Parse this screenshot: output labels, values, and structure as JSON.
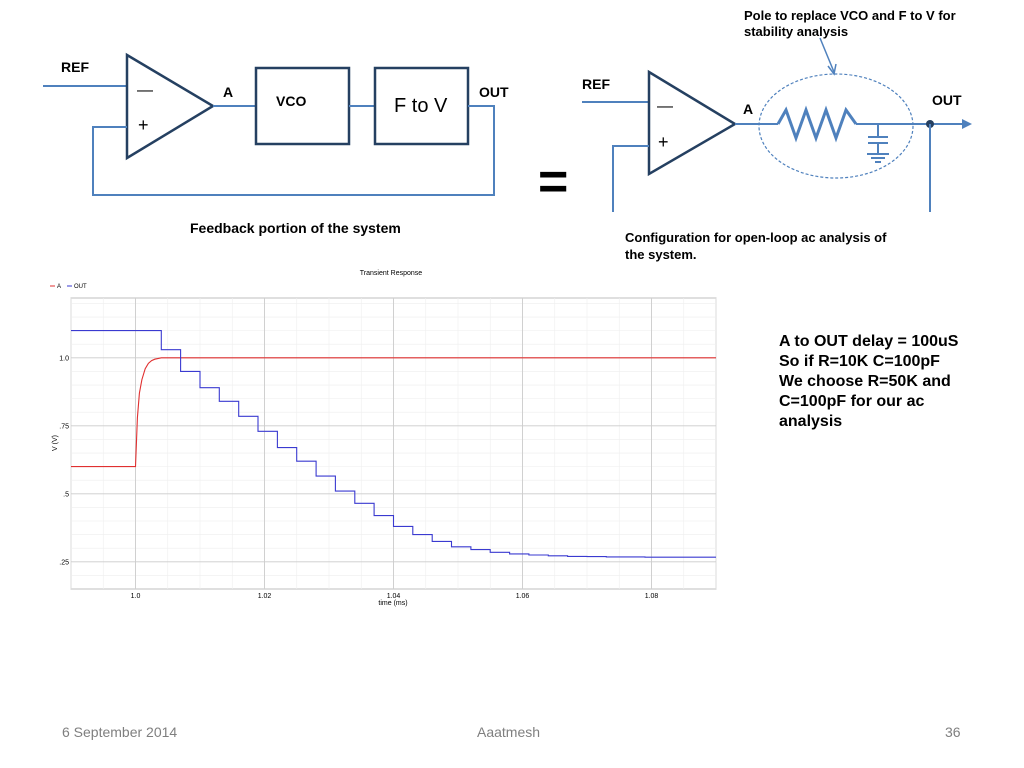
{
  "left_diagram": {
    "ref_label": "REF",
    "minus_label": "—",
    "plus_label": "+",
    "node_a_label": "A",
    "vco_label": "VCO",
    "f_to_v_label": "F to V",
    "out_label": "OUT",
    "caption": "Feedback portion of the system"
  },
  "equals_sign": "=",
  "right_diagram": {
    "ref_label": "REF",
    "minus_label": "—",
    "plus_label": "+",
    "node_a_label": "A",
    "out_label": "OUT",
    "annotation_line1": "Pole to replace VCO and F to V for",
    "annotation_line2": "stability analysis",
    "caption_line1": "Configuration for open-loop ac analysis of",
    "caption_line2": "the system."
  },
  "chart_data": {
    "type": "line",
    "title": "Transient Response",
    "xlabel": "time (ms)",
    "ylabel": "V (V)",
    "xlim": [
      0.99,
      1.09
    ],
    "ylim": [
      0.15,
      1.22
    ],
    "x_ticks": [
      "1.0",
      "1.02",
      "1.04",
      "1.06",
      "1.08"
    ],
    "x_tick_values": [
      1.0,
      1.02,
      1.04,
      1.06,
      1.08
    ],
    "y_ticks": [
      "1.0",
      ".75",
      ".5",
      ".25"
    ],
    "y_tick_values": [
      1.0,
      0.75,
      0.5,
      0.25
    ],
    "grid": true,
    "legend": [
      {
        "name": "A",
        "color": "#e03030"
      },
      {
        "name": "OUT",
        "color": "#3a3ad0"
      }
    ],
    "series": [
      {
        "name": "A",
        "color": "#e03030",
        "x": [
          0.99,
          1.0,
          1.0003,
          1.0006,
          1.001,
          1.0015,
          1.002,
          1.0025,
          1.003,
          1.004,
          1.09
        ],
        "y": [
          0.6,
          0.6,
          0.78,
          0.87,
          0.92,
          0.96,
          0.98,
          0.99,
          0.995,
          1.0,
          1.0
        ]
      },
      {
        "name": "OUT",
        "color": "#3a3ad0",
        "step_x": [
          0.99,
          1.004,
          1.007,
          1.01,
          1.013,
          1.016,
          1.019,
          1.022,
          1.025,
          1.028,
          1.031,
          1.034,
          1.037,
          1.04,
          1.043,
          1.046,
          1.049,
          1.052,
          1.055,
          1.058,
          1.061,
          1.064,
          1.067,
          1.07,
          1.073,
          1.076,
          1.079,
          1.082,
          1.09
        ],
        "step_y": [
          1.1,
          1.03,
          0.95,
          0.89,
          0.84,
          0.785,
          0.73,
          0.67,
          0.62,
          0.565,
          0.51,
          0.465,
          0.42,
          0.38,
          0.35,
          0.325,
          0.305,
          0.295,
          0.285,
          0.279,
          0.275,
          0.272,
          0.27,
          0.269,
          0.268,
          0.268,
          0.267,
          0.267,
          0.267
        ]
      }
    ]
  },
  "side_note": {
    "line1": "A to OUT delay = 100uS",
    "line2": "So if R=10K C=100pF",
    "line3": "We choose R=50K and",
    "line4": "C=100pF for our ac",
    "line5": "analysis"
  },
  "footer": {
    "date": "6 September 2014",
    "author": "Aaatmesh",
    "page_number": "36"
  },
  "colors": {
    "wire": "#4f81bd",
    "block_border": "#254061",
    "ellipse": "#4f81bd"
  }
}
